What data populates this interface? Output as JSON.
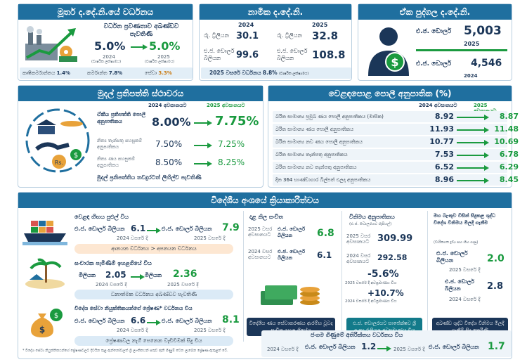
{
  "real_gdp": {
    "title": "මූර්ත ද.දේ.නි.යේ වර්ධනය",
    "caption": "වර්ධන ප්‍රවණතාව අඛණ්ඩව පැවතිණි",
    "v2024": "5.0%",
    "v2025": "5.0%",
    "y2024": "2024",
    "y2025": "2025",
    "sub2024": "(වාර්ෂික ලක්ෂ්‍යමය)",
    "sub2025": "(වාර්ෂික ලක්ෂ්‍යමය)",
    "agri_label": "කෘෂිකර්මාන්තය",
    "agri": "1.4%",
    "ind_label": "කර්මාන්ත",
    "ind": "7.8%",
    "serv_label": "සේවා",
    "serv": "3.3%"
  },
  "nominal_gdp": {
    "title": "නාමික ද.දේ.නි.",
    "y2024": "2024",
    "y2025": "2025",
    "rs_label": "රු. ට්‍රිලියන",
    "rs2024": "30.1",
    "rs2025": "32.8",
    "usd_label": "එ.ජ. ඩොලර් බිලියන",
    "usd2024": "99.6",
    "usd2025": "108.8",
    "growth_label": "2025 වසරේ වර්ධනය",
    "growth": "8.8%",
    "growth_sub": "(වාර්ෂික ලක්ෂ්‍යමය)"
  },
  "per_capita": {
    "title": "ඒක පුද්ගල ද.දේ.නි.",
    "unit": "එ.ජ. ඩොලර්",
    "v2025": "5,003",
    "y2025": "2025",
    "v2024": "4,546",
    "y2024": "2024"
  },
  "monetary": {
    "title": "මුදල් ප්‍රතිපත්ති ස්ථාවරය",
    "h2024": "2024 අවසානයට",
    "h2025": "2025 අවසානයට",
    "r1_label": "ඒකීය ප්‍රතිපත්ති පොලී අනුපාතිකය",
    "r1a": "8.00%",
    "r1b": "7.75%",
    "r2_label": "නිත්‍ය තැන්පතු පහසුකම් අනුපාතිකය",
    "r2a": "7.50%",
    "r2b": "7.25%",
    "r3_label": "නිත්‍ය ණය පහසුකම් අනුපාතිකය",
    "r3a": "8.50%",
    "r3b": "8.25%",
    "footer": "මුදල් ප්‍රතිපත්තිය තවදුරටත් ලිහිල්ව පැවතිණි"
  },
  "rates": {
    "title": "වෙළඳපොළ පොලී අනුපාතික (%)",
    "h2024": "2024 අවසානයට",
    "h2025": "2025 අවසානයට",
    "rows": [
      {
        "label": "බරිත සාමාන්‍ය ප්‍රමුඛ ණය පොලී අනුපාතිකය (මාසික)",
        "a": "8.92",
        "b": "8.87"
      },
      {
        "label": "බරිත සාමාන්‍ය ණය පොලී අනුපාතිකය",
        "a": "11.93",
        "b": "11.48"
      },
      {
        "label": "බරිත සාමාන්‍ය නව ණය පොලී අනුපාතිකය",
        "a": "10.77",
        "b": "10.69"
      },
      {
        "label": "බරිත සාමාන්‍ය තැන්පතු අනුපාතිකය",
        "a": "7.53",
        "b": "6.78"
      },
      {
        "label": "බරිත සාමාන්‍ය නව තැන්පතු අනුපාතිකය",
        "a": "6.52",
        "b": "6.29"
      },
      {
        "label": "දින 364 භාණ්ඩාගාර බිල්පත් ඵලදා අනුපාතිකය",
        "a": "8.96",
        "b": "8.45"
      }
    ]
  },
  "external": {
    "title": "විදේශීය අංශයේ ක්‍රියාකාරිත්වය",
    "trade_label": "වෙළඳ හිඟය පුළුල් විය",
    "trade_unit": "එ.ජ. ඩොලර් බිලියන",
    "trade2024": "6.1",
    "trade2025": "7.9",
    "y2024": "2024 වසරේ දී",
    "y2025": "2025 වසරේ දී",
    "trade_note": "ආනයන වර්ධනය > අපනයන වර්ධනය",
    "tour_label": "සංචාරක පැමිණීම් ඉහළගියේ විය",
    "tour_unit": "මිලියන",
    "tour2024": "2.05",
    "tour2025": "2.36",
    "tour_note": "ධනාත්මක වර්ධනය අඛණ්ඩව පැවතිණි",
    "remit_label": "විදේශ සේවා නියුක්තිකයන්ගේ ප්‍රේෂණ* වර්ධනය විය",
    "remit_unit": "එ.ජ. ඩොලර් බිලියන",
    "remit2024": "6.6",
    "remit2025": "8.1",
    "remit_note": "ප්‍රේෂණවල නැගී පෙනෙන වැඩිවීමක් සිදු විය",
    "reserves_title": "දළ නිල සංචිත",
    "res2025_label": "2025 වසර අවසානයට",
    "res2025_unit": "එ.ජ. ඩොලර් බිලියන",
    "res2025": "6.8",
    "res2024_label": "2024 වසර අවසානයට",
    "res2024_unit": "එ.ජ. ඩොලර් බිලියන",
    "res2024": "6.1",
    "res_note": "විදේශීය ණය සේවාකරණය ආරම්භ වූවද සංචිත ඉහළ ගියේය",
    "fx_title": "විනිමය අනුපාතිකය",
    "fx_sub": "(එ.ජ. ඩොලරයට රුපියල්)",
    "fx2025_label": "2025 වසර අවසානයට",
    "fx2025": "309.99",
    "fx2024_label": "2024 වසර අවසානයට",
    "fx2024": "292.58",
    "fx_dep": "-5.6%",
    "fx_dep_label": "2025 වසරේ දී අවප්‍රමාණය විය",
    "fx_app": "+10.7%",
    "fx_app_label": "2024 වසරේ දී අධිප්‍රමාණය විය",
    "fx_note": "එ.ජ. ඩොලරයට සාපේක්ෂව ශ්‍රී ලංකා රුපියල අවප්‍රමාණය විය",
    "cb_title": "මහ බැංකුව විසින් සිදුකළ ශුද්ධ විදේශ විනිමය මිලදී ගැනීම",
    "cb_sub": "(වාරිකගත ද්‍රව්‍ය සහ හිඟ ගණු)",
    "cb_unit": "එ.ජ. ඩොලර් බිලියන",
    "cb2025": "2.0",
    "cb2025_label": "2025 වසරේ දී",
    "cb2024": "2.8",
    "cb2024_label": "2024 වසරේ දී",
    "cb_note": "අඛණ්ඩ ශුද්ධ විදේශ විනිමය මිලදී ගැනීම් සිදු කෙරිණි",
    "ca_title": "ජංගම ගිණුමේ අතිරික්තය වර්ධනය විය",
    "ca2024_label": "2024 වසරේ දී",
    "ca2024": "1.2",
    "ca2025_label": "2025 වසරේ දී",
    "ca2025": "1.7",
    "ca_unit": "එ.ජ. ඩොලර් බිලියන",
    "footnote": "* විදේශ සේවා නියුක්තිකයන්ගේ ප්‍රේෂණවලට දිවයින තුළ ඇන්නෝවලත් ශ්‍රී ලාංකිකයන් සතුව ඇති ගිණුම් වෙත ලැබෙන ප්‍රේෂණ ඇතුළත් වේ."
  },
  "colors": {
    "header": "#1f6f9f",
    "green": "#1a9a3f",
    "navy": "#1b3658"
  }
}
